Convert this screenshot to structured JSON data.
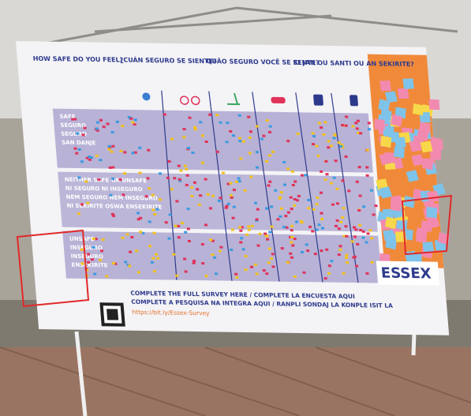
{
  "banner": {
    "questions": [
      "HOW SAFE DO YOU FEEL?",
      "¿CUÁN SEGURO SE SIENTE?",
      "QUÃO SEGURO VOCÊ SE SENTE?",
      "KI JAN OU SANTI OU AN SEKIRITE?"
    ],
    "rows": [
      {
        "labels": [
          "SAFE",
          "SEGURO",
          "SEGURO",
          "SAN DANJE"
        ]
      },
      {
        "labels": [
          "NEITHER SAFE OR UNSAFE",
          "NI SEGURO NI INSEGURO",
          "NEM SEGURO NEM INSEGURO",
          "NI SEKIRITE OSWA ENSEKIRITE"
        ]
      },
      {
        "labels": [
          "UNSAFE",
          "INSEGURO",
          "INSEGURO",
          "ENSEKIRITE"
        ]
      }
    ],
    "survey": {
      "lines": [
        "COMPLETE THE FULL SURVEY HERE / COMPLETE LA ENCUESTA AQUI",
        "COMPLETE A PESQUISA NA INTEGRA AQUI / RANPLI SONDAJ LA KONPLE ISIT LA"
      ],
      "url": "https://bit.ly/Essex-Survey"
    },
    "logo": "ESSEX"
  }
}
